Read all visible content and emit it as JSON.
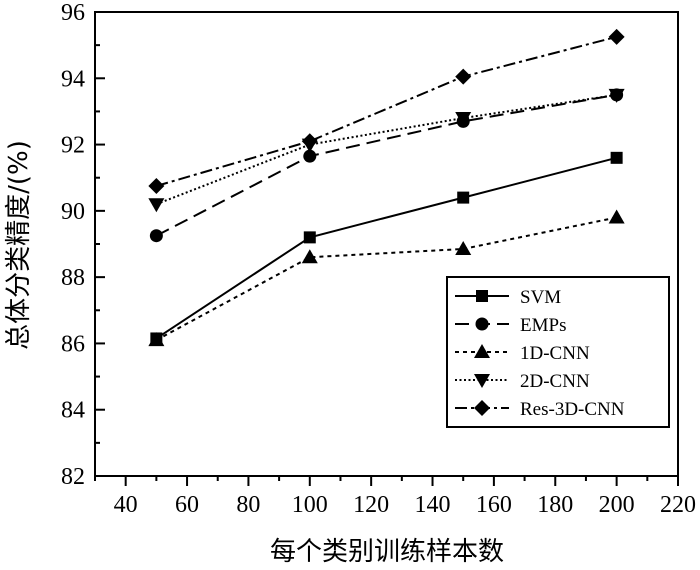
{
  "chart_data": {
    "type": "line",
    "xlabel": "每个类别训练样本数",
    "ylabel": "总体分类精度/(%)",
    "xlim": [
      30,
      220
    ],
    "ylim": [
      82,
      96
    ],
    "xticks": [
      40,
      60,
      80,
      100,
      120,
      140,
      160,
      180,
      200,
      220
    ],
    "yticks": [
      82,
      84,
      86,
      88,
      90,
      92,
      94,
      96
    ],
    "x": [
      50,
      100,
      150,
      200
    ],
    "grid": false,
    "legend_position": "bottom-right",
    "series": [
      {
        "name": "SVM",
        "marker": "square",
        "dash": "solid",
        "values": [
          86.15,
          89.2,
          90.4,
          91.6
        ]
      },
      {
        "name": "EMPs",
        "marker": "circle",
        "dash": "dash",
        "values": [
          89.25,
          91.65,
          92.7,
          93.5
        ]
      },
      {
        "name": "1D-CNN",
        "marker": "triangle-up",
        "dash": "dot",
        "values": [
          86.1,
          88.6,
          88.85,
          89.8
        ]
      },
      {
        "name": "2D-CNN",
        "marker": "triangle-down",
        "dash": "dense-dot",
        "values": [
          90.2,
          92.0,
          92.8,
          93.5
        ]
      },
      {
        "name": "Res-3D-CNN",
        "marker": "diamond",
        "dash": "dash-dot",
        "values": [
          90.75,
          92.1,
          94.05,
          95.25
        ]
      }
    ]
  }
}
